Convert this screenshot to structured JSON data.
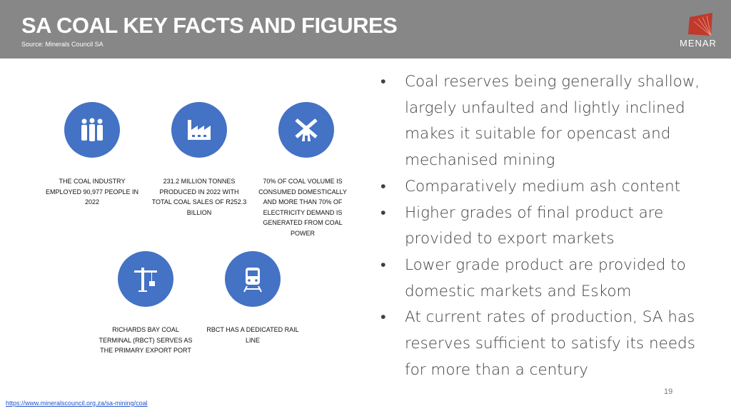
{
  "header": {
    "title": "SA COAL KEY FACTS AND FIGURES",
    "source_label": "Source:",
    "source": "Minerals Council SA",
    "logo_text": "MENAR"
  },
  "facts": [
    {
      "icon": "people-icon",
      "text": "THE COAL INDUSTRY EMPLOYED 90,977 PEOPLE IN 2022"
    },
    {
      "icon": "factory-icon",
      "text": "231.2 MILLION TONNES PRODUCED IN 2022 WITH TOTAL COAL SALES OF R252.3 BILLION"
    },
    {
      "icon": "windmill-icon",
      "text": "70% OF COAL VOLUME IS CONSUMED DOMESTICALLY AND MORE THAN 70% OF ELECTRICITY DEMAND IS GENERATED FROM COAL POWER"
    },
    {
      "icon": "crane-icon",
      "text": "RICHARDS BAY COAL TERMINAL (RBCT) SERVES AS THE PRIMARY EXPORT PORT"
    },
    {
      "icon": "train-icon",
      "text": "RBCT HAS A DEDICATED RAIL LINE"
    }
  ],
  "bullets": [
    "Coal reserves being generally shallow, largely unfaulted and lightly inclined makes it suitable for opencast and mechanised mining",
    "Comparatively medium ash content",
    "Higher grades of final product are provided to export markets",
    "Lower grade product are provided to domestic markets and Eskom",
    "At current rates of production, SA has reserves sufficient to satisfy its needs for more than a century"
  ],
  "page_number": "19",
  "footer_link": "https://www.mineralscouncil.org.za/sa-mining/coal",
  "colors": {
    "header": "#878787",
    "accent": "#4472c4",
    "logo": "#c0392b"
  }
}
